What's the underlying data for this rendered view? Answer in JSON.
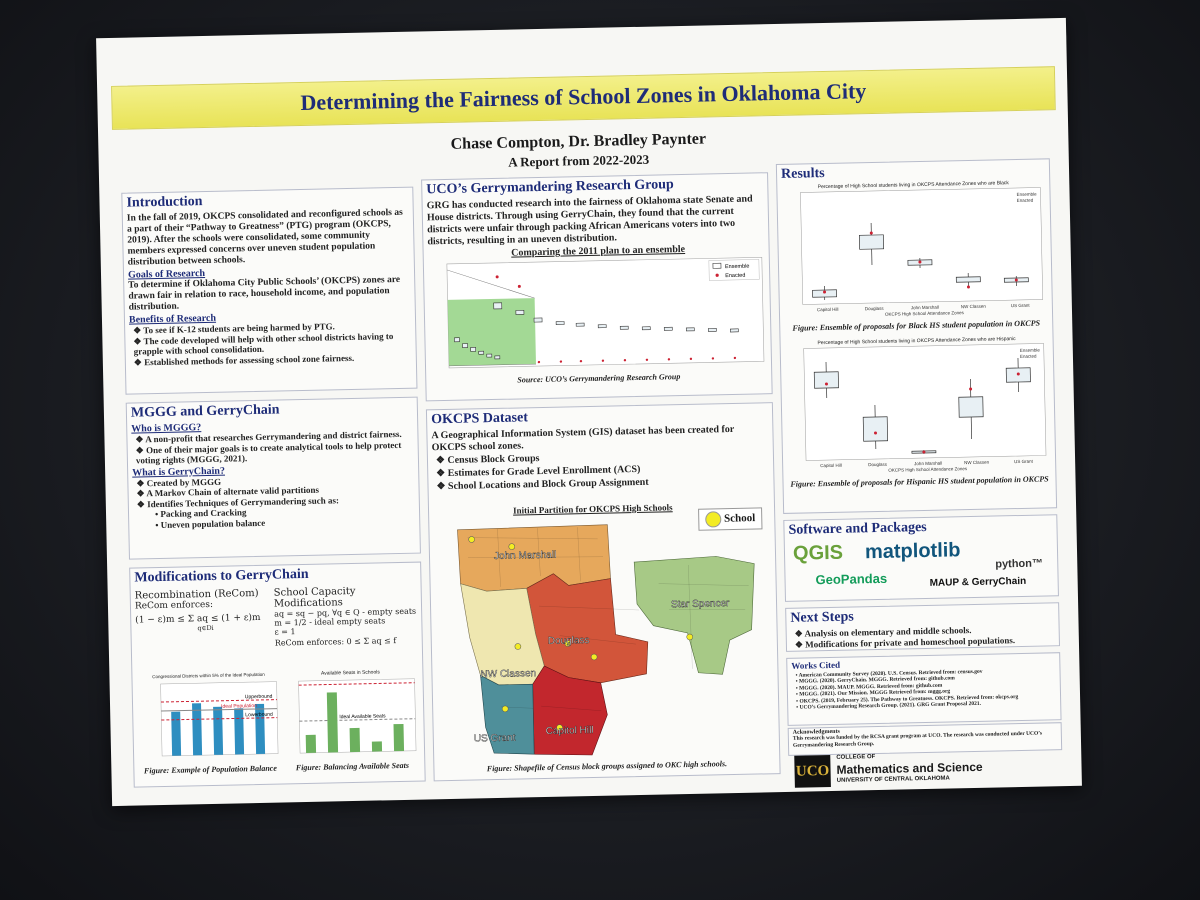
{
  "title": "Determining the Fairness of School Zones in Oklahoma City",
  "authors": "Chase Compton, Dr. Bradley Paynter",
  "report_year": "A Report from 2022-2023",
  "introduction": {
    "heading": "Introduction",
    "body": "In the fall of 2019, OKCPS consolidated and reconfigured schools as a part of their “Pathway to Greatness” (PTG) program (OKCPS, 2019). After the schools were consolidated, some community members expressed concerns over uneven student population distribution between schools.",
    "goals_heading": "Goals of Research",
    "goals_body": "To determine if Oklahoma City Public Schools’ (OKCPS) zones are drawn fair in relation to race, household income, and population distribution.",
    "benefits_heading": "Benefits of Research",
    "benefits": [
      "To see if K-12 students are being harmed by PTG.",
      "The code developed will help with other school districts having to grapple with school consolidation.",
      "Established methods for assessing school zone fairness."
    ]
  },
  "mggg": {
    "heading": "MGGG and GerryChain",
    "who_heading": "Who is MGGG?",
    "who": [
      "A non-profit that researches Gerrymandering and district fairness.",
      "One of their major goals is to create analytical tools to help protect voting rights (MGGG, 2021)."
    ],
    "what_heading": "What is GerryChain?",
    "what": [
      "Created by MGGG",
      "A Markov Chain of alternate valid partitions",
      "Identifies Techniques of Gerrymandering such as:"
    ],
    "what_sub": [
      "Packing and Cracking",
      "Uneven population balance"
    ]
  },
  "modifications": {
    "heading": "Modifications to GerryChain",
    "recom_title": "Recombination (ReCom)",
    "recom_enforces": "ReCom enforces:",
    "recom_formula": "(1 − ε)m ≤ Σ aq ≤ (1 + ε)m",
    "recom_sub": "q∈Di",
    "cap_title": "School Capacity Modifications",
    "cap_l1": "aq = sq − pq, ∀q ∈ Q - empty seats",
    "cap_l2": "m = 1/2 - ideal empty seats",
    "cap_l3": "ε = 1",
    "cap_enforces": "ReCom enforces: 0 ≤ Σ aq ≤ f",
    "chart1_title": "Congressional Districts within 5% of the Ideal Population",
    "chart1_caption": "Figure: Example of Population Balance",
    "chart1_labels": [
      "Upperbound",
      "Ideal Population",
      "Lowerbound"
    ],
    "chart2_title": "Available Seats in Schools",
    "chart2_caption": "Figure: Balancing Available Seats",
    "chart2_labels": [
      "Ideal Available Seats"
    ]
  },
  "grg": {
    "heading": "UCO’s Gerrymandering Research Group",
    "body": "GRG has conducted research into the fairness of Oklahoma state Senate and House districts. Through using GerryChain, they found that the current districts were unfair through packing African Americans voters into two districts, resulting in an uneven distribution.",
    "chart_title": "Comparing the 2011 plan to an ensemble",
    "legend": [
      "Ensemble",
      "Enacted"
    ],
    "source": "Source: UCO’s Gerrymandering Research Group"
  },
  "dataset": {
    "heading": "OKCPS Dataset",
    "body": "A Geographical Information System (GIS) dataset has been created for OKCPS school zones.",
    "items": [
      "Census Block Groups",
      "Estimates for Grade Level Enrollment (ACS)",
      "School Locations and Block Group Assignment"
    ],
    "map_title": "Initial Partition for OKCPS High Schools",
    "legend_school": "School",
    "zones": [
      "John Marshall",
      "Star Spencer",
      "Douglass",
      "NW Classen",
      "US Grant",
      "Capitol Hill"
    ],
    "caption": "Figure: Shapefile of Census block groups assigned to OKC high schools."
  },
  "results": {
    "heading": "Results",
    "chart1_title": "Percentage of High School students living in OKCPS Attendance Zones who are Black",
    "chart1_caption": "Figure: Ensemble of proposals for Black HS student population in OKCPS",
    "chart2_title": "Percentage of High School students living in OKCPS Attendance Zones who are Hispanic",
    "chart2_caption": "Figure: Ensemble of proposals for Hispanic HS student population in OKCPS",
    "categories": [
      "Capitol Hill",
      "Douglass",
      "John Marshall",
      "NW Classen",
      "US Grant"
    ],
    "xlabel": "OKCPS High School Attendance Zones",
    "legend": [
      "Ensemble",
      "Enacted"
    ]
  },
  "software": {
    "heading": "Software and Packages",
    "logos": [
      "QGIS",
      "matplotlib",
      "python™",
      "GeoPandas",
      "MAUP & GerryChain"
    ]
  },
  "next_steps": {
    "heading": "Next Steps",
    "items": [
      "Analysis on elementary and middle schools.",
      "Modifications for private and homeschool populations."
    ]
  },
  "works_cited": {
    "heading": "Works Cited",
    "items": [
      "American Community Survey (2020). U.S. Census. Retrieved from: census.gov",
      "MGGG. (2020). GerryChain. MGGG. Retrieved from: github.com",
      "MGGG. (2020). MAUP. MGGG. Retrieved from: github.com",
      "MGGG. (2021). Our Mission. MGGG Retrieved from: mggg.org",
      "OKCPS. (2019, February 25). The Pathway to Greatness. OKCPS. Retrieved from: okcps.org",
      "UCO’s Gerrymandering Research Group. (2021). GRG Grant Proposal 2021."
    ]
  },
  "acknowledgments": {
    "heading": "Acknowledgments",
    "body": "This research was funded by the RCSA grant program at UCO. The research was conducted under UCO’s Gerrymandering Research Group."
  },
  "college": {
    "mark": "UCO",
    "line1": "COLLEGE OF",
    "line2": "Mathematics and Science",
    "line3": "UNIVERSITY OF CENTRAL OKLAHOMA"
  },
  "colors": {
    "banner": "#ece865",
    "heading": "#1e2c78",
    "john_marshall": "#e6a85c",
    "douglass": "#d2553a",
    "capitol_hill": "#c2272d",
    "nw_classen": "#efe7b0",
    "us_grant": "#4f8f9a",
    "star_spencer": "#a7c986",
    "school_dot": "#f3ec24"
  }
}
